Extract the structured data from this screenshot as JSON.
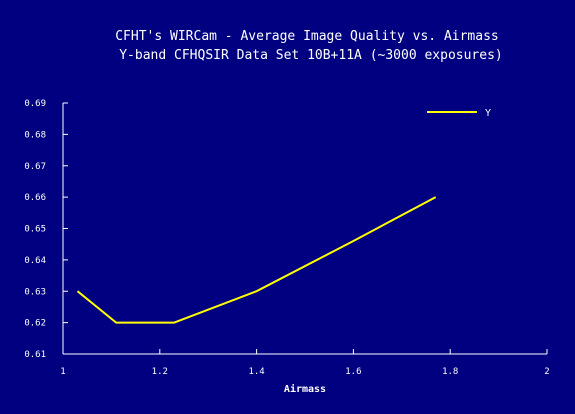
{
  "chart_data": {
    "type": "line",
    "title": "CFHT's WIRCam - Average Image Quality vs. Airmass",
    "subtitle": "Y-band CFHQSIR Data Set 10B+11A (~3000 exposures)",
    "xlabel": "Airmass",
    "ylabel": "",
    "xlim": [
      1,
      2
    ],
    "ylim": [
      0.61,
      0.69
    ],
    "x_ticks": [
      1,
      1.2,
      1.4,
      1.6,
      1.8,
      2
    ],
    "x_tick_labels": [
      "1",
      "1.2",
      "1.4",
      "1.6",
      "1.8",
      "2"
    ],
    "y_ticks": [
      0.61,
      0.62,
      0.63,
      0.64,
      0.65,
      0.66,
      0.67,
      0.68,
      0.69
    ],
    "y_tick_labels": [
      "0.61",
      "0.62",
      "0.63",
      "0.64",
      "0.65",
      "0.66",
      "0.67",
      "0.68",
      "0.69"
    ],
    "grid": false,
    "legend_position": "top-right",
    "series": [
      {
        "name": "Y",
        "color": "#ffff00",
        "x": [
          1.03,
          1.11,
          1.23,
          1.4,
          1.6,
          1.77
        ],
        "y": [
          0.63,
          0.62,
          0.62,
          0.63,
          0.646,
          0.66
        ]
      }
    ],
    "colors": {
      "background": "#000080",
      "axes": "#ffffff",
      "text": "#ffffff"
    }
  }
}
